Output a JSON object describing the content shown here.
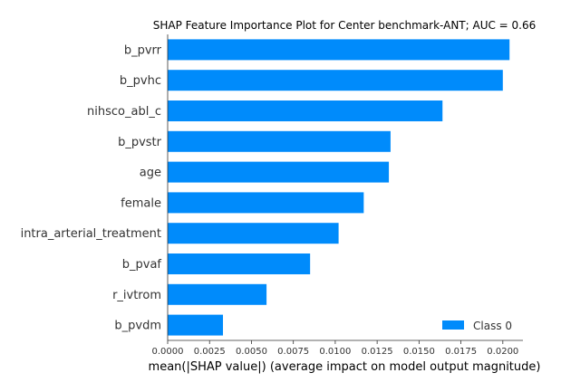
{
  "chart_data": {
    "type": "bar",
    "orientation": "horizontal",
    "title": "SHAP Feature Importance Plot for Center benchmark-ANT; AUC = 0.66",
    "xlabel": "mean(|SHAP value|) (average impact on model output magnitude)",
    "ylabel": "",
    "categories": [
      "b_pvrr",
      "b_pvhc",
      "nihsco_abl_c",
      "b_pvstr",
      "age",
      "female",
      "intra_arterial_treatment",
      "b_pvaf",
      "r_ivtrom",
      "b_pvdm"
    ],
    "series": [
      {
        "name": "Class 0",
        "values": [
          0.0204,
          0.02,
          0.0164,
          0.0133,
          0.0132,
          0.0117,
          0.0102,
          0.0085,
          0.0059,
          0.0033
        ]
      }
    ],
    "xlim": [
      0.0,
      0.0212
    ],
    "xticks": [
      0.0,
      0.0025,
      0.005,
      0.0075,
      0.01,
      0.0125,
      0.015,
      0.0175,
      0.02
    ],
    "xtick_labels": [
      "0.0000",
      "0.0025",
      "0.0050",
      "0.0075",
      "0.0100",
      "0.0125",
      "0.0150",
      "0.0175",
      "0.0200"
    ],
    "grid": false,
    "legend_position": "bottom-right",
    "bar_color": "#008bfb"
  }
}
